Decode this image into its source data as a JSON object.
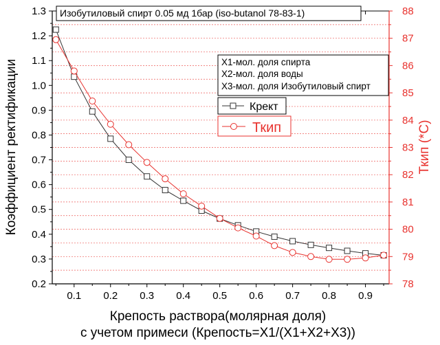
{
  "chart_data": {
    "type": "line",
    "title": "Изобутиловый спирт 0.05 мд 1бар (iso-butanol  78-83-1)",
    "xlabel_line1": "Крепость раствора(молярная доля)",
    "xlabel_line2": "с учетом примеси (Крепость=X1/(X1+X2+X3))",
    "ylabel_left": "Коэффициент ректификации",
    "ylabel_right": "Ткип (*C)",
    "xlim": [
      0.04,
      0.965
    ],
    "ylim_left": [
      0.2,
      1.3
    ],
    "ylim_right": [
      78,
      88
    ],
    "x_ticks": [
      "0.1",
      "0.2",
      "0.3",
      "0.4",
      "0.5",
      "0.6",
      "0.7",
      "0.8",
      "0.9"
    ],
    "y_left_ticks": [
      "0.2",
      "0.3",
      "0.4",
      "0.5",
      "0.6",
      "0.7",
      "0.8",
      "0.9",
      "1.0",
      "1.1",
      "1.2",
      "1.3"
    ],
    "y_right_ticks": [
      "78",
      "79",
      "80",
      "81",
      "82",
      "83",
      "84",
      "85",
      "86",
      "87",
      "88"
    ],
    "legend_info": [
      "X1-мол. доля спирта",
      "X2-мол. доля воды",
      "X3-мол. доля Изобутиловый спирт"
    ],
    "x": [
      0.05,
      0.1,
      0.15,
      0.2,
      0.25,
      0.3,
      0.35,
      0.4,
      0.45,
      0.5,
      0.55,
      0.6,
      0.65,
      0.7,
      0.75,
      0.8,
      0.85,
      0.9,
      0.95
    ],
    "series": [
      {
        "name": "Крект",
        "axis": "left",
        "color": "#333333",
        "marker": "square",
        "values": [
          1.225,
          1.035,
          0.895,
          0.785,
          0.7,
          0.633,
          0.578,
          0.535,
          0.495,
          0.463,
          0.436,
          0.411,
          0.39,
          0.372,
          0.357,
          0.345,
          0.333,
          0.323,
          0.315
        ]
      },
      {
        "name": "Ткип",
        "axis": "right",
        "color": "#e8322e",
        "marker": "circle",
        "values": [
          86.95,
          85.8,
          84.7,
          83.85,
          83.1,
          82.45,
          81.85,
          81.3,
          80.85,
          80.4,
          80.05,
          79.75,
          79.4,
          79.15,
          79.0,
          78.9,
          78.9,
          78.95,
          79.05
        ]
      }
    ],
    "colors": {
      "left_axis": "#000000",
      "right_axis": "#e8322e",
      "grid": "#e8322e"
    }
  }
}
